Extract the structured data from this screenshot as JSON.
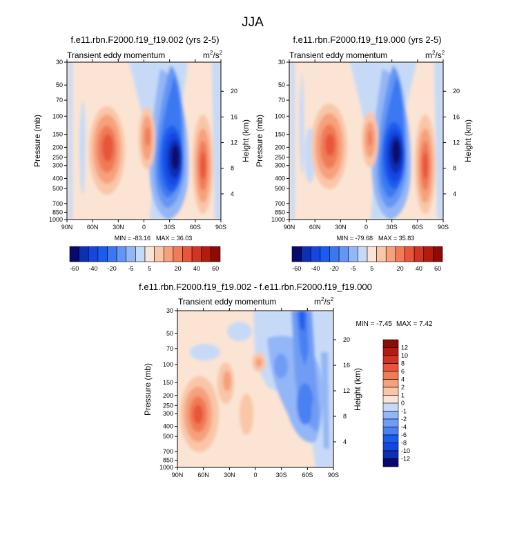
{
  "chart_data": {
    "type": "heatmap",
    "title": "JJA",
    "contour_levels": [
      -60,
      -50,
      -40,
      -30,
      -20,
      -10,
      -5,
      0,
      5,
      10,
      15,
      20,
      30,
      40,
      50,
      60
    ],
    "contour_levels_labeled": [
      "-60",
      "-40",
      "-20",
      "-5",
      "5",
      "20",
      "40",
      "60"
    ],
    "contour_colors": [
      "#08086e",
      "#0c2fb4",
      "#1446e0",
      "#1a5cf0",
      "#3a78f2",
      "#6396f4",
      "#93b6f6",
      "#c6daf8",
      "#fbe4d3",
      "#f9c6a8",
      "#f6a07c",
      "#f17a57",
      "#e8553a",
      "#d33322",
      "#b51a10",
      "#8e0a05"
    ],
    "diff_levels": [
      -12,
      -10,
      -8,
      -6,
      -4,
      -2,
      -1,
      0,
      1,
      2,
      4,
      6,
      8,
      10,
      12
    ],
    "diff_labels": [
      "12",
      "10",
      "8",
      "6",
      "4",
      "2",
      "1",
      "0",
      "-1",
      "-2",
      "-4",
      "-6",
      "-8",
      "-10",
      "-12"
    ],
    "diff_colors_top_to_bottom": [
      "#8e0a05",
      "#b51a10",
      "#d33322",
      "#e8553a",
      "#f17a57",
      "#f6a07c",
      "#f9c6a8",
      "#fbe4d3",
      "#c6daf8",
      "#93b6f6",
      "#6f9cf4",
      "#4a80f2",
      "#1a5cf0",
      "#1446e0",
      "#0c2fb4",
      "#08086e"
    ],
    "x_ticks": [
      "90N",
      "60N",
      "30N",
      "0",
      "30S",
      "60S",
      "90S"
    ],
    "y_ticks": [
      "30",
      "50",
      "70",
      "100",
      "150",
      "200",
      "250",
      "300",
      "400",
      "500",
      "700",
      "850",
      "1000"
    ],
    "y2_ticks": [
      "20",
      "16",
      "12",
      "8",
      "4"
    ],
    "xlabel": "",
    "ylabel": "Pressure (mb)",
    "y2label": "Height (km)",
    "units": "m²/s²",
    "panels": [
      {
        "title": "f.e11.rbn.F2000.f19_f19.002 (yrs 2-5)",
        "subtitle": "Transient eddy momentum",
        "min_label": "MIN = -83.16",
        "max_label": "MAX = 36.03",
        "min": -83.16,
        "max": 36.03
      },
      {
        "title": "f.e11.rbn.F2000.f19_f19.000 (yrs 2-5)",
        "subtitle": "Transient eddy momentum",
        "min_label": "MIN = -79.68",
        "max_label": "MAX = 35.83",
        "min": -79.68,
        "max": 35.83
      },
      {
        "title": "f.e11.rbn.F2000.f19_f19.002 - f.e11.rbn.F2000.f19_f19.000",
        "subtitle": "Transient eddy momentum",
        "min_label": "MIN = -7.45",
        "max_label": "MAX = 7.42",
        "min": -7.45,
        "max": 7.42
      }
    ]
  }
}
